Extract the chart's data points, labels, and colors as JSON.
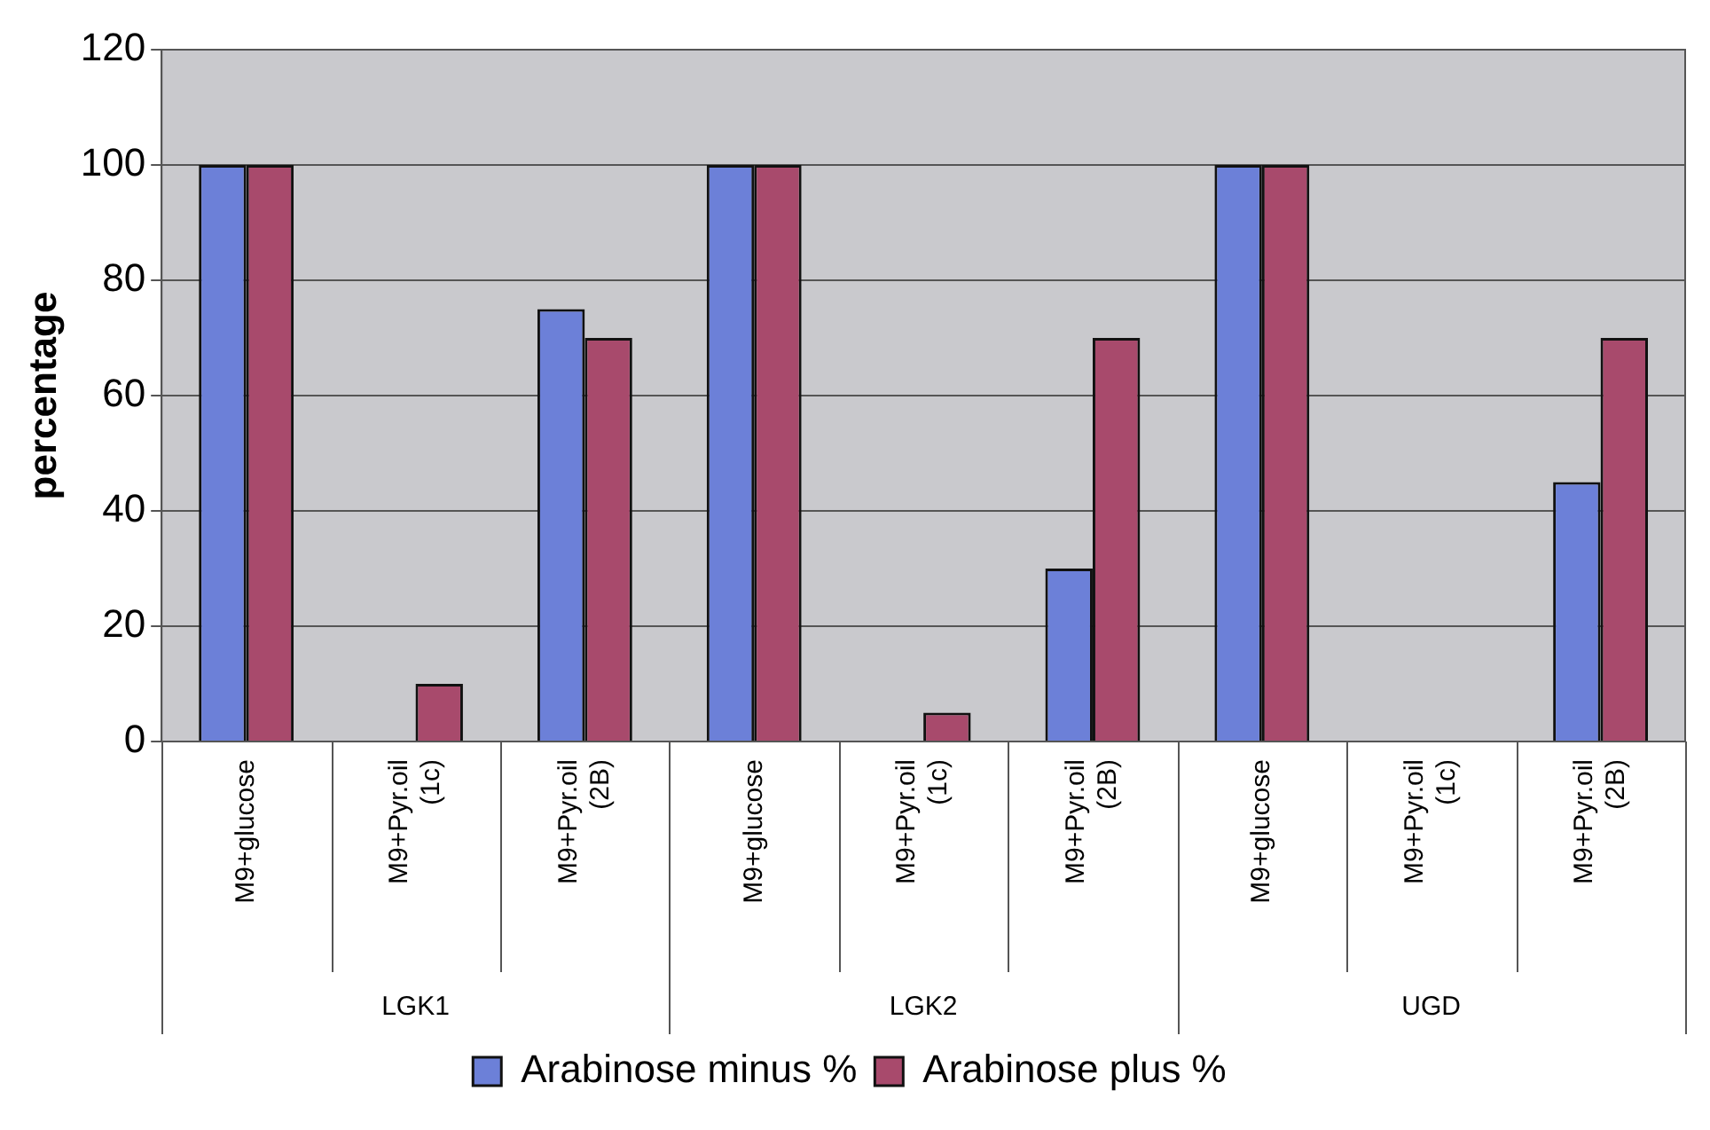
{
  "chart_data": {
    "type": "bar",
    "ylabel": "percentage",
    "categories": [
      "M9+glucose",
      "M9+Pyr.oil (1c)",
      "M9+Pyr.oil (2B)",
      "M9+glucose",
      "M9+Pyr.oil (1c)",
      "M9+Pyr.oil (2B)",
      "M9+glucose",
      "M9+Pyr.oil (1c)",
      "M9+Pyr.oil (2B)"
    ],
    "series": [
      {
        "name": "Arabinose minus %",
        "color": "#6c80d8",
        "values": [
          100,
          0,
          75,
          100,
          0,
          30,
          100,
          0,
          45
        ]
      },
      {
        "name": "Arabinose plus %",
        "color": "#a84a6c",
        "values": [
          100,
          10,
          70,
          100,
          5,
          70,
          100,
          0,
          70
        ]
      }
    ],
    "annotations": [
      "LGK1",
      "LGK2",
      "UGD"
    ],
    "ylim": [
      0,
      120
    ],
    "yticks": [
      0,
      20,
      40,
      60,
      80,
      100,
      120
    ],
    "grid": "y",
    "legend": "bottom"
  }
}
